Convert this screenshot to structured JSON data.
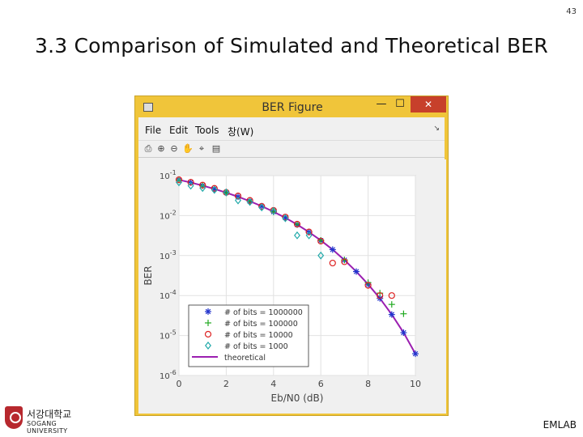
{
  "slide": {
    "number": "43",
    "title": "3.3 Comparison of Simulated and Theoretical BER",
    "footer_right": "EMLAB",
    "logo_korean": "서강대학교",
    "logo_english": "SOGANG UNIVERSITY"
  },
  "window": {
    "title": "BER Figure",
    "minimize": "—",
    "maximize": "☐",
    "close": "✕",
    "menu": [
      "File",
      "Edit",
      "Tools",
      "창(W)"
    ],
    "menu_arrow": "↘",
    "toolbar_icons": [
      "print-icon",
      "zoom-in-icon",
      "zoom-out-icon",
      "pan-icon",
      "datacursor-icon",
      "insert-colorbar-icon"
    ]
  },
  "chart_data": {
    "type": "line",
    "xlabel": "Eb/N0 (dB)",
    "ylabel": "BER",
    "xlim": [
      0,
      10
    ],
    "ylim": [
      1e-06,
      0.1
    ],
    "yscale": "log",
    "xticks": [
      "0",
      "2",
      "4",
      "6",
      "8",
      "10"
    ],
    "yticks": [
      "10^-6",
      "10^-5",
      "10^-4",
      "10^-3",
      "10^-2",
      "10^-1"
    ],
    "grid": true,
    "legend_position": "bottom-left",
    "series": [
      {
        "name": "# of bits = 1000000",
        "marker": "asterisk",
        "color": "#2233cc",
        "x": [
          0,
          0.5,
          1,
          1.5,
          2,
          2.5,
          3,
          3.5,
          4,
          4.5,
          5,
          5.5,
          6,
          6.5,
          7,
          7.5,
          8,
          8.5,
          9,
          9.5,
          10
        ],
        "y": [
          0.0786,
          0.0671,
          0.0563,
          0.0464,
          0.0375,
          0.0296,
          0.0229,
          0.0172,
          0.0125,
          0.00883,
          0.00595,
          0.00386,
          0.00239,
          0.00141,
          0.000773,
          0.000398,
          0.000191,
          8.49e-05,
          3.36e-05,
          1.18e-05,
          3.5e-06
        ]
      },
      {
        "name": "# of bits = 100000",
        "marker": "plus",
        "color": "#22aa22",
        "x": [
          0,
          1,
          2,
          3,
          4,
          5,
          6,
          7,
          8,
          8.5,
          9,
          9.5
        ],
        "y": [
          0.0782,
          0.0565,
          0.0371,
          0.0231,
          0.0124,
          0.0061,
          0.0024,
          0.00078,
          0.00021,
          0.000115,
          6e-05,
          3.5e-05
        ]
      },
      {
        "name": "# of bits = 10000",
        "marker": "circle",
        "color": "#dd2222",
        "x": [
          0,
          0.5,
          1,
          1.5,
          2,
          2.5,
          3,
          3.5,
          4,
          4.5,
          5,
          5.5,
          6,
          6.5,
          7,
          8,
          8.5,
          9
        ],
        "y": [
          0.079,
          0.068,
          0.058,
          0.048,
          0.038,
          0.031,
          0.024,
          0.017,
          0.0135,
          0.0092,
          0.0061,
          0.0039,
          0.0023,
          0.00065,
          0.0007,
          0.00018,
          0.0001,
          0.0001
        ]
      },
      {
        "name": "# of bits = 1000",
        "marker": "diamond",
        "color": "#22aaaa",
        "x": [
          0,
          0.5,
          1,
          1.5,
          2,
          2.5,
          3,
          3.5,
          4,
          4.5,
          5,
          5.5,
          6
        ],
        "y": [
          0.068,
          0.056,
          0.049,
          0.044,
          0.038,
          0.024,
          0.022,
          0.016,
          0.013,
          0.0086,
          0.0032,
          0.0032,
          0.001
        ]
      },
      {
        "name": "theoretical",
        "marker": "line",
        "color": "#9b1fb0",
        "x": [
          0,
          0.5,
          1,
          1.5,
          2,
          2.5,
          3,
          3.5,
          4,
          4.5,
          5,
          5.5,
          6,
          6.5,
          7,
          7.5,
          8,
          8.5,
          9,
          9.5,
          10
        ],
        "y": [
          0.0786,
          0.0671,
          0.0563,
          0.0464,
          0.0375,
          0.0296,
          0.0229,
          0.0172,
          0.0125,
          0.00883,
          0.00595,
          0.00386,
          0.00239,
          0.00141,
          0.000773,
          0.000398,
          0.000191,
          8.49e-05,
          3.36e-05,
          1.18e-05,
          3.5e-06
        ]
      }
    ]
  }
}
